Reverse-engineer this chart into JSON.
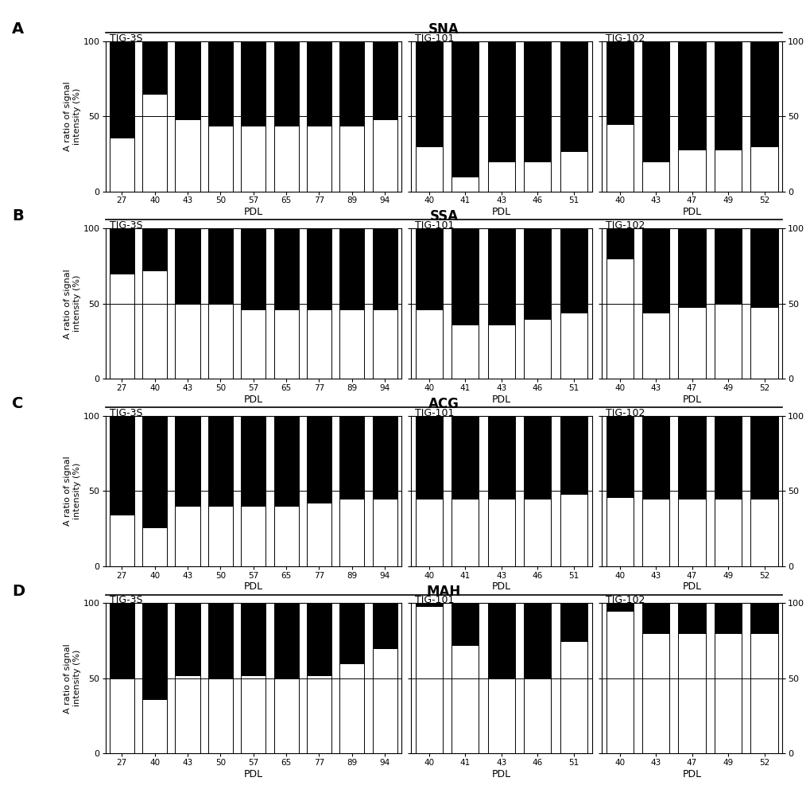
{
  "lectins": [
    "SNA",
    "SSA",
    "ACG",
    "MAH"
  ],
  "panel_labels": [
    "A",
    "B",
    "C",
    "D"
  ],
  "cell_lines": [
    "TIG-3S",
    "TIG-101",
    "TIG-102"
  ],
  "pdl_3s": [
    27,
    40,
    43,
    50,
    57,
    65,
    77,
    89,
    94
  ],
  "pdl_101": [
    40,
    41,
    43,
    46,
    51
  ],
  "pdl_102": [
    40,
    43,
    47,
    49,
    52
  ],
  "data": {
    "SNA": {
      "TIG-3S": {
        "surface": [
          36,
          65,
          48,
          44,
          44,
          44,
          44,
          44,
          48
        ],
        "intracellular": [
          64,
          35,
          52,
          56,
          56,
          56,
          56,
          56,
          52
        ]
      },
      "TIG-101": {
        "surface": [
          30,
          10,
          20,
          20,
          27
        ],
        "intracellular": [
          70,
          90,
          80,
          80,
          73
        ]
      },
      "TIG-102": {
        "surface": [
          45,
          20,
          28,
          28,
          30
        ],
        "intracellular": [
          55,
          80,
          72,
          72,
          70
        ]
      }
    },
    "SSA": {
      "TIG-3S": {
        "surface": [
          70,
          72,
          50,
          50,
          46,
          46,
          46,
          46,
          46
        ],
        "intracellular": [
          30,
          28,
          50,
          50,
          54,
          54,
          54,
          54,
          54
        ]
      },
      "TIG-101": {
        "surface": [
          46,
          36,
          36,
          40,
          44
        ],
        "intracellular": [
          54,
          64,
          64,
          60,
          56
        ]
      },
      "TIG-102": {
        "surface": [
          80,
          44,
          48,
          50,
          48
        ],
        "intracellular": [
          20,
          56,
          52,
          50,
          52
        ]
      }
    },
    "ACG": {
      "TIG-3S": {
        "surface": [
          34,
          26,
          40,
          40,
          40,
          40,
          42,
          45,
          45
        ],
        "intracellular": [
          66,
          74,
          60,
          60,
          60,
          60,
          58,
          55,
          55
        ]
      },
      "TIG-101": {
        "surface": [
          45,
          45,
          45,
          45,
          48
        ],
        "intracellular": [
          55,
          55,
          55,
          55,
          52
        ]
      },
      "TIG-102": {
        "surface": [
          46,
          45,
          45,
          45,
          45
        ],
        "intracellular": [
          54,
          55,
          55,
          55,
          55
        ]
      }
    },
    "MAH": {
      "TIG-3S": {
        "surface": [
          50,
          36,
          52,
          50,
          52,
          50,
          52,
          60,
          70
        ],
        "intracellular": [
          50,
          64,
          48,
          50,
          48,
          50,
          48,
          40,
          30
        ]
      },
      "TIG-101": {
        "surface": [
          98,
          72,
          50,
          50,
          75
        ],
        "intracellular": [
          2,
          28,
          50,
          50,
          25
        ]
      },
      "TIG-102": {
        "surface": [
          95,
          80,
          80,
          80,
          80
        ],
        "intracellular": [
          5,
          20,
          20,
          20,
          20
        ]
      }
    }
  },
  "bar_color_intra": "#000000",
  "bar_color_surface": "#ffffff",
  "bar_edgecolor": "#000000",
  "background_color": "#ffffff",
  "ylabel": "A ratio of signal\nintensity (%)",
  "xlabel": "PDL"
}
